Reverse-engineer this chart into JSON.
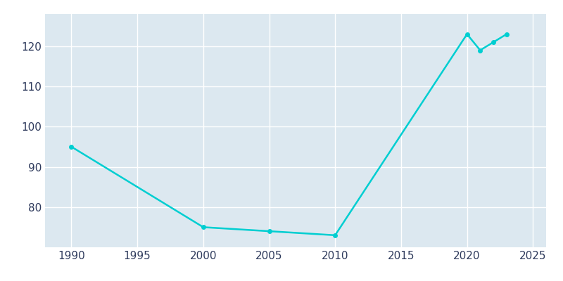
{
  "years": [
    1990,
    2000,
    2005,
    2010,
    2020,
    2021,
    2022,
    2023
  ],
  "population": [
    95,
    75,
    74,
    73,
    123,
    119,
    121,
    123
  ],
  "line_color": "#00CED1",
  "marker_color": "#00CED1",
  "background_color": "#dce8f0",
  "outer_background": "#ffffff",
  "grid_color": "#ffffff",
  "xlabel": "",
  "ylabel": "",
  "xlim": [
    1988,
    2026
  ],
  "ylim": [
    70,
    128
  ],
  "xticks": [
    1990,
    1995,
    2000,
    2005,
    2010,
    2015,
    2020,
    2025
  ],
  "yticks": [
    80,
    90,
    100,
    110,
    120
  ],
  "tick_label_color": "#2E3A5C",
  "tick_fontsize": 11,
  "linewidth": 1.8,
  "markersize": 4
}
